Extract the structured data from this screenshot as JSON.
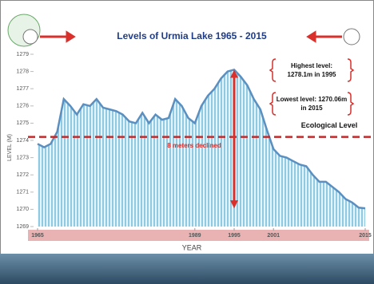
{
  "chart_data": {
    "type": "area",
    "title": "Levels of Urmia Lake 1965 - 2015",
    "x_label": "YEAR",
    "y_label": "LEVEL (M)",
    "x": [
      1965,
      1966,
      1967,
      1968,
      1969,
      1970,
      1971,
      1972,
      1973,
      1974,
      1975,
      1976,
      1977,
      1978,
      1979,
      1980,
      1981,
      1982,
      1983,
      1984,
      1985,
      1986,
      1987,
      1988,
      1989,
      1990,
      1991,
      1992,
      1993,
      1994,
      1995,
      1996,
      1997,
      1998,
      1999,
      2000,
      2001,
      2002,
      2003,
      2004,
      2005,
      2006,
      2007,
      2008,
      2009,
      2010,
      2011,
      2012,
      2013,
      2014,
      2015
    ],
    "series": [
      {
        "name": "Level",
        "color": "#5b8fc0",
        "values": [
          1273.8,
          1273.6,
          1273.8,
          1274.5,
          1276.4,
          1276.0,
          1275.5,
          1276.1,
          1276.0,
          1276.4,
          1275.9,
          1275.8,
          1275.7,
          1275.5,
          1275.1,
          1275.0,
          1275.6,
          1275.0,
          1275.5,
          1275.2,
          1275.3,
          1276.4,
          1276.0,
          1275.3,
          1275.0,
          1276.0,
          1276.6,
          1277.0,
          1277.6,
          1278.0,
          1278.1,
          1277.7,
          1277.2,
          1276.4,
          1275.8,
          1274.6,
          1273.5,
          1273.1,
          1273.0,
          1272.8,
          1272.6,
          1272.5,
          1272.0,
          1271.6,
          1271.6,
          1271.3,
          1271.0,
          1270.6,
          1270.4,
          1270.1,
          1270.06
        ]
      }
    ],
    "xlim": [
      1965,
      2015
    ],
    "xticks": [
      1965,
      1989,
      1995,
      2001,
      2015
    ],
    "ylim": [
      1269,
      1279
    ],
    "yticks": [
      1269,
      1270,
      1271,
      1272,
      1273,
      1274,
      1275,
      1276,
      1277,
      1278,
      1279
    ],
    "reference_line": {
      "value": 1274.2,
      "label": "Ecological Level",
      "color": "#c62828"
    },
    "annotations": [
      {
        "lines": [
          "Highest level:",
          "1278.1m in 1995"
        ]
      },
      {
        "lines": [
          "Lowest level: 1270.06m",
          "in 2015"
        ]
      },
      {
        "text": "8 meters declined"
      }
    ]
  }
}
